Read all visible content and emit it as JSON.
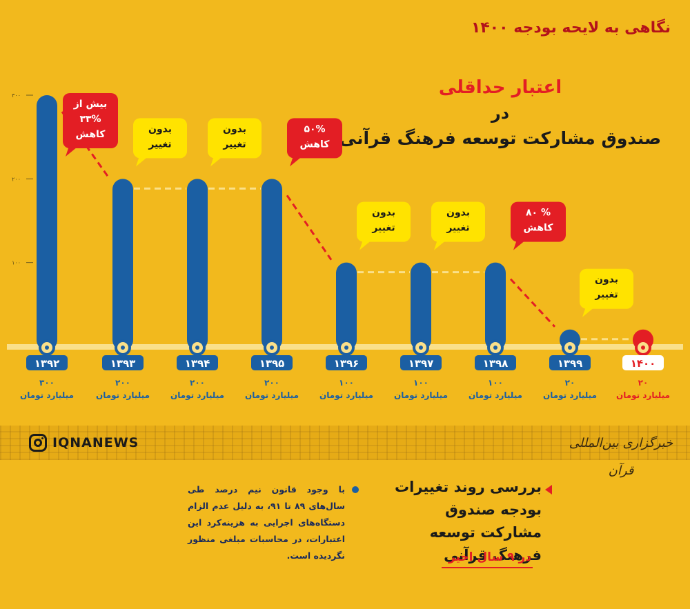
{
  "header": {
    "top_line": "نگاهی به لایحه بودجه ۱۴۰۰"
  },
  "title": {
    "line1": "اعتبار حداقلی",
    "line2": "در",
    "line3": "صندوق مشارکت توسعه  فرهنگ قرآنی"
  },
  "chart_data": {
    "type": "bar",
    "categories": [
      "۱۳۹۲",
      "۱۳۹۳",
      "۱۳۹۴",
      "۱۳۹۵",
      "۱۳۹۶",
      "۱۳۹۷",
      "۱۳۹۸",
      "۱۳۹۹",
      "۱۴۰۰"
    ],
    "values": [
      300,
      200,
      200,
      200,
      100,
      100,
      100,
      20,
      20
    ],
    "value_labels": [
      "۳۰۰",
      "۲۰۰",
      "۲۰۰",
      "۲۰۰",
      "۱۰۰",
      "۱۰۰",
      "۱۰۰",
      "۲۰",
      "۲۰"
    ],
    "unit_label": "میلیارد تومان",
    "yticks": [
      0,
      100,
      200,
      300
    ],
    "ytick_labels": [
      "۰",
      "۱۰۰",
      "۲۰۰",
      "۳۰۰"
    ],
    "ylim": [
      0,
      300
    ],
    "bar_color": "#1b5fa3",
    "highlight_color": "#e31e24",
    "highlight_index": 8,
    "annotations": [
      {
        "between": [
          0,
          1
        ],
        "type": "decrease",
        "lines": [
          "بیش از",
          "۳۳%",
          "کاهش"
        ]
      },
      {
        "between": [
          1,
          2
        ],
        "type": "same",
        "lines": [
          "بدون",
          "تغییر"
        ]
      },
      {
        "between": [
          2,
          3
        ],
        "type": "same",
        "lines": [
          "بدون",
          "تغییر"
        ]
      },
      {
        "between": [
          3,
          4
        ],
        "type": "decrease",
        "lines": [
          "۵۰%",
          "کاهش"
        ]
      },
      {
        "between": [
          4,
          5
        ],
        "type": "same",
        "lines": [
          "بدون",
          "تغییر"
        ]
      },
      {
        "between": [
          5,
          6
        ],
        "type": "same",
        "lines": [
          "بدون",
          "تغییر"
        ]
      },
      {
        "between": [
          6,
          7
        ],
        "type": "decrease",
        "lines": [
          "۸۰ %",
          "کاهش"
        ]
      },
      {
        "between": [
          7,
          8
        ],
        "type": "same",
        "lines": [
          "بدون",
          "تغییر"
        ]
      }
    ]
  },
  "footer": {
    "instagram": "IQNANEWS",
    "logo_text": "خبرگزاری بین‌المللی قرآن",
    "note": "با وجود قانون نیم درصد طی سال‌های ۸۹ تا ۹۱، به دلیل عدم الزام دستگاه‌های اجرایی به هزینه‌کرد این اعتبارات، در محاسبات مبلغی منظور نگردیده است.",
    "side_title": "بررسی روند تغییرات بودجه صندوق مشارکت توسعه فرهنگ قرآنی",
    "side_sub": "در ۹ سال اخیر"
  }
}
